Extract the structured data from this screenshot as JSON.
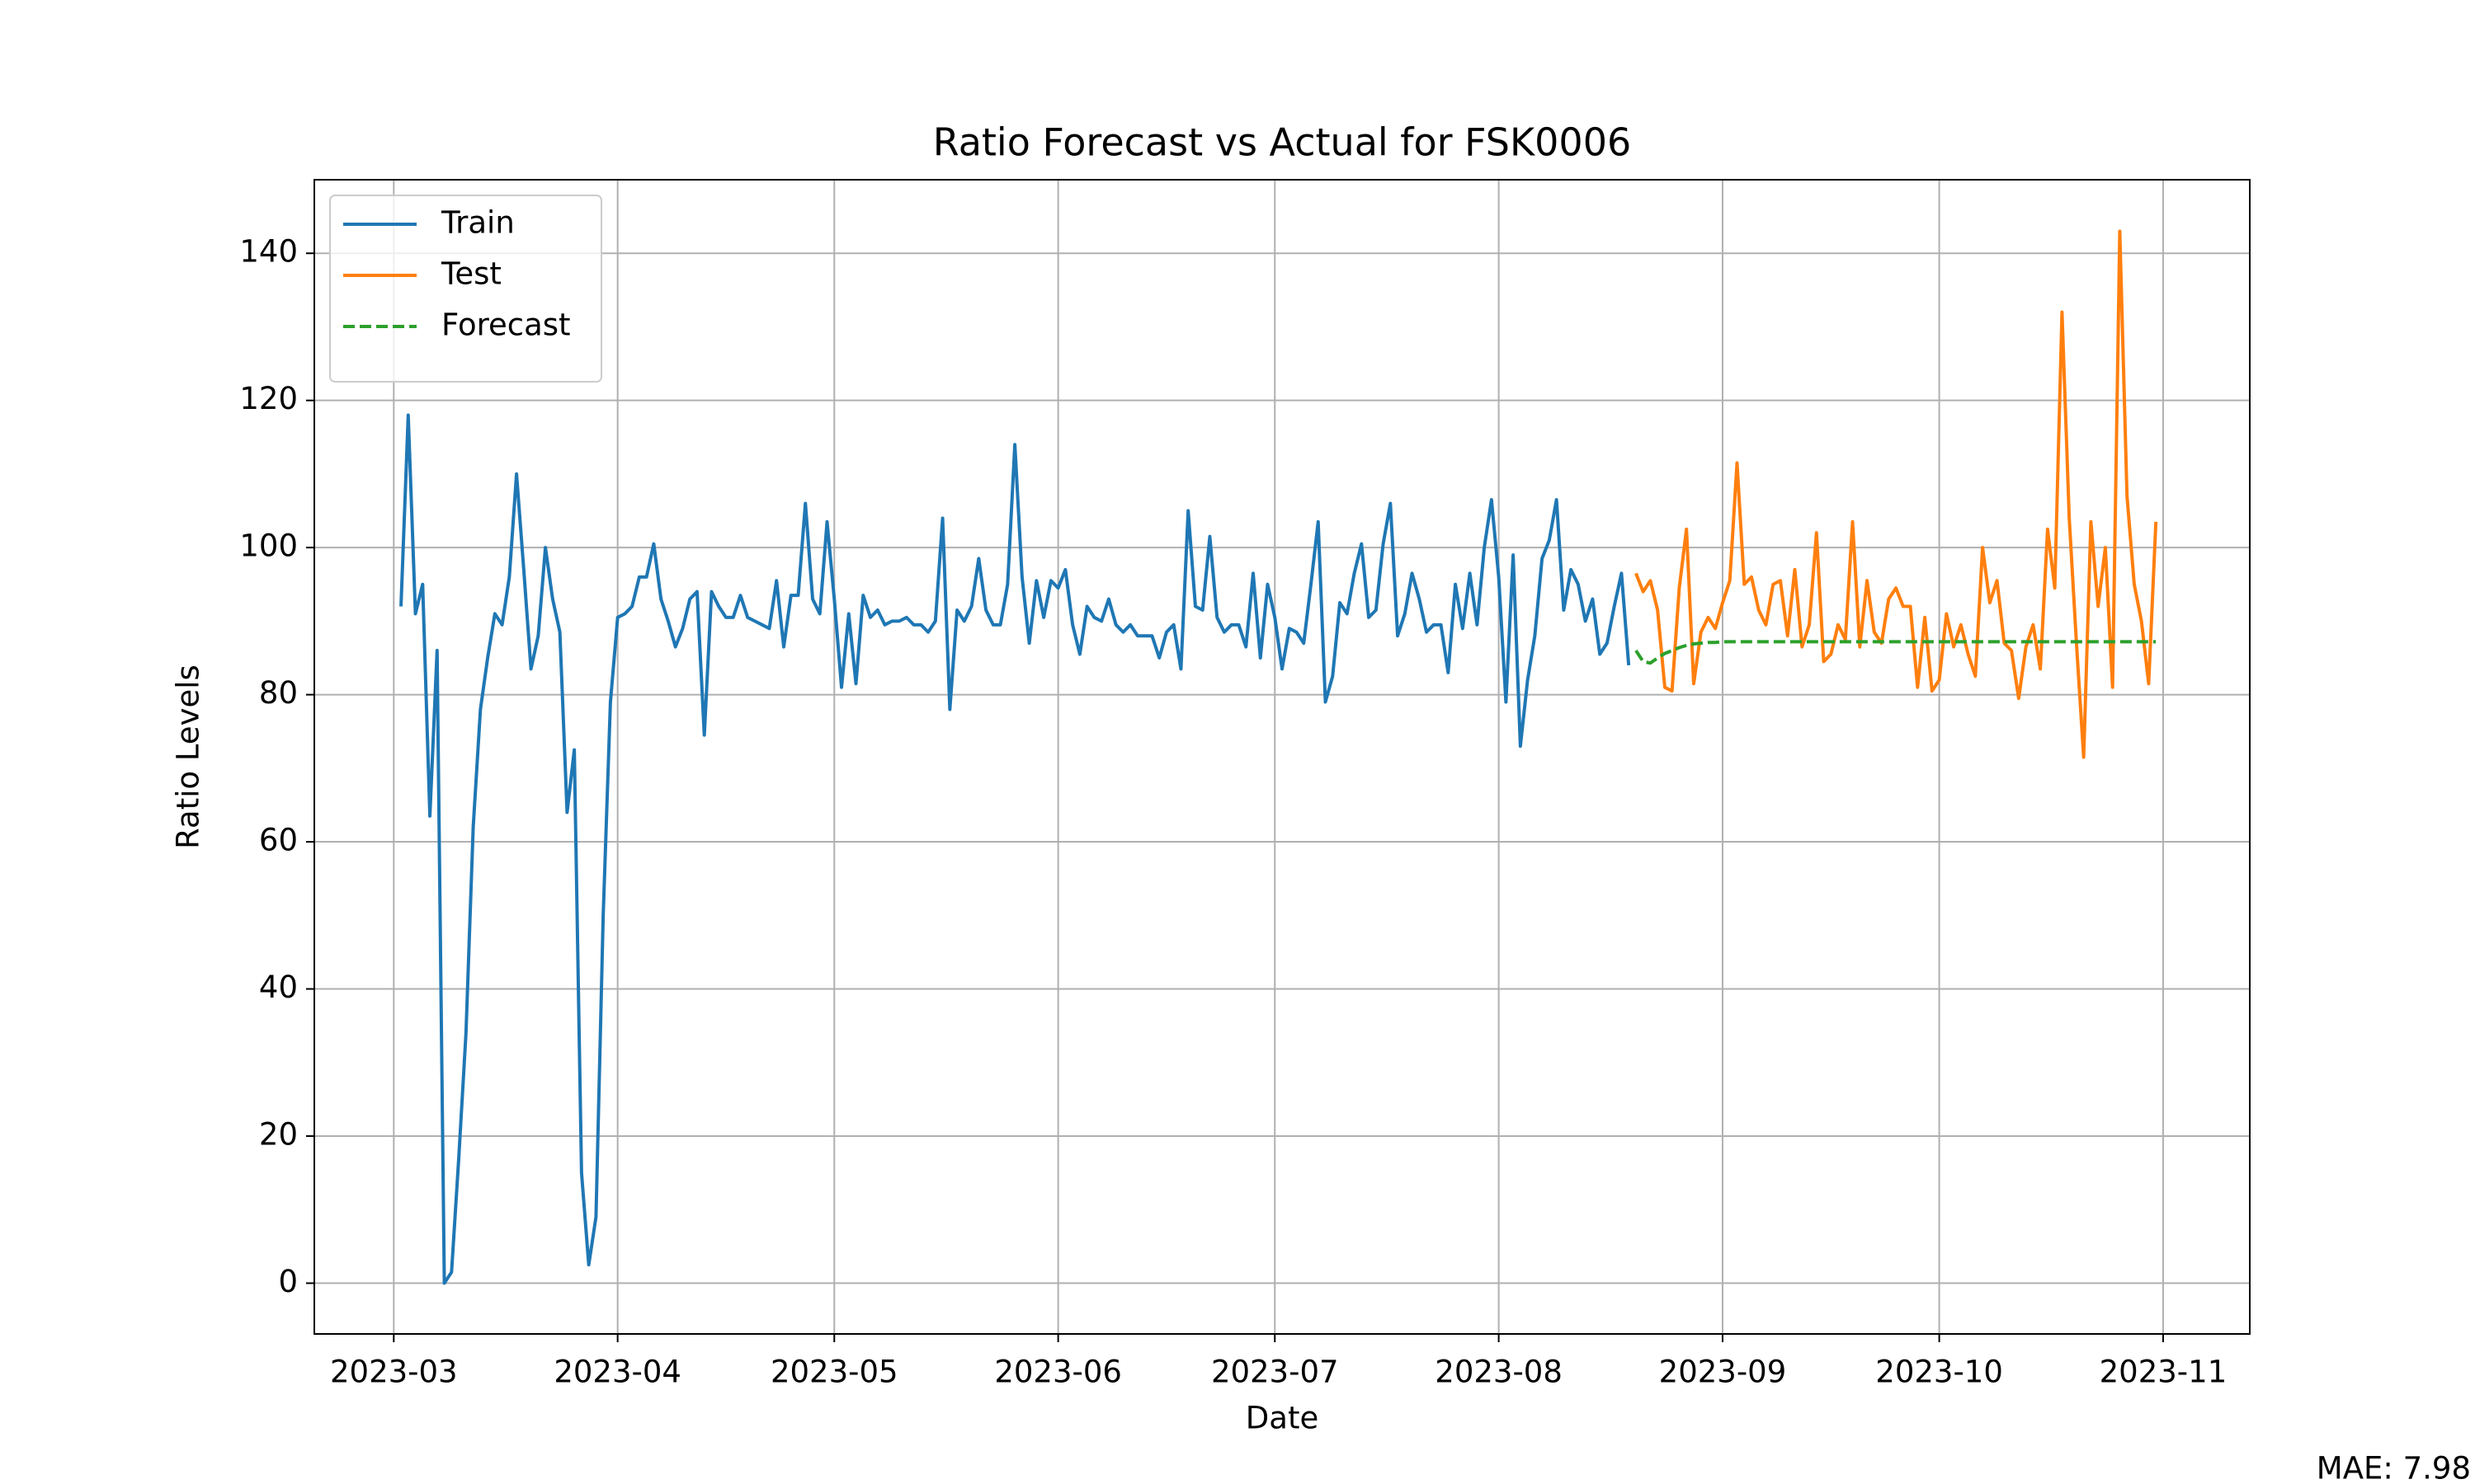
{
  "chart_data": {
    "type": "line",
    "title": "Ratio Forecast vs Actual for FSK0006",
    "x_label": "Date",
    "y_label": "Ratio Levels",
    "annotation": "MAE: 7.98",
    "xlim": [
      "2023-02-18",
      "2023-11-13"
    ],
    "xticks": [
      "2023-03",
      "2023-04",
      "2023-05",
      "2023-06",
      "2023-07",
      "2023-08",
      "2023-09",
      "2023-10",
      "2023-11"
    ],
    "ylim": [
      -6.9,
      150
    ],
    "yticks": [
      0,
      20,
      40,
      60,
      80,
      100,
      120,
      140
    ],
    "grid": true,
    "legend_position": "upper left",
    "series": [
      {
        "name": "Train",
        "color": "#1f77b4",
        "dashed": false,
        "x": [
          "2023-03-02",
          "2023-03-03",
          "2023-03-04",
          "2023-03-05",
          "2023-03-06",
          "2023-03-07",
          "2023-03-08",
          "2023-03-09",
          "2023-03-10",
          "2023-03-11",
          "2023-03-12",
          "2023-03-13",
          "2023-03-14",
          "2023-03-15",
          "2023-03-16",
          "2023-03-17",
          "2023-03-18",
          "2023-03-19",
          "2023-03-20",
          "2023-03-21",
          "2023-03-22",
          "2023-03-23",
          "2023-03-24",
          "2023-03-25",
          "2023-03-26",
          "2023-03-27",
          "2023-03-28",
          "2023-03-29",
          "2023-03-30",
          "2023-03-31",
          "2023-04-01",
          "2023-04-02",
          "2023-04-03",
          "2023-04-04",
          "2023-04-05",
          "2023-04-06",
          "2023-04-07",
          "2023-04-08",
          "2023-04-09",
          "2023-04-10",
          "2023-04-11",
          "2023-04-12",
          "2023-04-13",
          "2023-04-14",
          "2023-04-15",
          "2023-04-16",
          "2023-04-17",
          "2023-04-18",
          "2023-04-19",
          "2023-04-20",
          "2023-04-21",
          "2023-04-22",
          "2023-04-23",
          "2023-04-24",
          "2023-04-25",
          "2023-04-26",
          "2023-04-27",
          "2023-04-28",
          "2023-04-29",
          "2023-04-30",
          "2023-05-01",
          "2023-05-02",
          "2023-05-03",
          "2023-05-04",
          "2023-05-05",
          "2023-05-06",
          "2023-05-07",
          "2023-05-08",
          "2023-05-09",
          "2023-05-10",
          "2023-05-11",
          "2023-05-12",
          "2023-05-13",
          "2023-05-14",
          "2023-05-15",
          "2023-05-16",
          "2023-05-17",
          "2023-05-18",
          "2023-05-19",
          "2023-05-20",
          "2023-05-21",
          "2023-05-22",
          "2023-05-23",
          "2023-05-24",
          "2023-05-25",
          "2023-05-26",
          "2023-05-27",
          "2023-05-28",
          "2023-05-29",
          "2023-05-30",
          "2023-05-31",
          "2023-06-01",
          "2023-06-02",
          "2023-06-03",
          "2023-06-04",
          "2023-06-05",
          "2023-06-06",
          "2023-06-07",
          "2023-06-08",
          "2023-06-09",
          "2023-06-10",
          "2023-06-11",
          "2023-06-12",
          "2023-06-13",
          "2023-06-14",
          "2023-06-15",
          "2023-06-16",
          "2023-06-17",
          "2023-06-18",
          "2023-06-19",
          "2023-06-20",
          "2023-06-21",
          "2023-06-22",
          "2023-06-23",
          "2023-06-24",
          "2023-06-25",
          "2023-06-26",
          "2023-06-27",
          "2023-06-28",
          "2023-06-29",
          "2023-06-30",
          "2023-07-01",
          "2023-07-02",
          "2023-07-03",
          "2023-07-04",
          "2023-07-05",
          "2023-07-06",
          "2023-07-07",
          "2023-07-08",
          "2023-07-09",
          "2023-07-10",
          "2023-07-11",
          "2023-07-12",
          "2023-07-13",
          "2023-07-14",
          "2023-07-15",
          "2023-07-16",
          "2023-07-17",
          "2023-07-18",
          "2023-07-19",
          "2023-07-20",
          "2023-07-21",
          "2023-07-22",
          "2023-07-23",
          "2023-07-24",
          "2023-07-25",
          "2023-07-26",
          "2023-07-27",
          "2023-07-28",
          "2023-07-29",
          "2023-07-30",
          "2023-07-31",
          "2023-08-01",
          "2023-08-02",
          "2023-08-03",
          "2023-08-04",
          "2023-08-05",
          "2023-08-06",
          "2023-08-07",
          "2023-08-08",
          "2023-08-09",
          "2023-08-10",
          "2023-08-11",
          "2023-08-12",
          "2023-08-13",
          "2023-08-14",
          "2023-08-15",
          "2023-08-16",
          "2023-08-17",
          "2023-08-18",
          "2023-08-19"
        ],
        "values": [
          92,
          118,
          91,
          95,
          63.5,
          86,
          0,
          1.5,
          17,
          34,
          62,
          78,
          85,
          91,
          89.5,
          96,
          110,
          97,
          83.5,
          88,
          100,
          93,
          88.5,
          64,
          72.5,
          15,
          2.5,
          9,
          50,
          79,
          90.5,
          91,
          92,
          96,
          96,
          100.5,
          93,
          90,
          86.5,
          89,
          93,
          94,
          74.5,
          94,
          92,
          90.5,
          90.5,
          93.5,
          90.5,
          90,
          89.5,
          89,
          95.5,
          86.5,
          93.5,
          93.5,
          106,
          93,
          91,
          103.5,
          93,
          81,
          91,
          81.5,
          93.5,
          90.5,
          91.5,
          89.5,
          90,
          90,
          90.5,
          89.5,
          89.5,
          88.5,
          90,
          104,
          78,
          91.5,
          90,
          92,
          98.5,
          91.5,
          89.5,
          89.5,
          95,
          114,
          96,
          87,
          95.5,
          90.5,
          95.5,
          94.5,
          97,
          89.5,
          85.5,
          92,
          90.5,
          90,
          93,
          89.5,
          88.5,
          89.5,
          88,
          88,
          88,
          85,
          88.5,
          89.5,
          83.5,
          105,
          92,
          91.5,
          101.5,
          90.5,
          88.5,
          89.5,
          89.5,
          86.5,
          96.5,
          85,
          95,
          90.5,
          83.5,
          89,
          88.5,
          87,
          95,
          103.5,
          79,
          82.5,
          92.5,
          91,
          96.5,
          100.5,
          90.5,
          91.5,
          100.5,
          106,
          88,
          91,
          96.5,
          93,
          88.5,
          89.5,
          89.5,
          83,
          95,
          89,
          96.5,
          89.5,
          100,
          106.5,
          96,
          79,
          99,
          73,
          82,
          88,
          98.5,
          101,
          106.5,
          91.5,
          97,
          95,
          90,
          93,
          85.5,
          87,
          92,
          96.5,
          84
        ]
      },
      {
        "name": "Test",
        "color": "#ff7f0e",
        "dashed": false,
        "x": [
          "2023-08-20",
          "2023-08-21",
          "2023-08-22",
          "2023-08-23",
          "2023-08-24",
          "2023-08-25",
          "2023-08-26",
          "2023-08-27",
          "2023-08-28",
          "2023-08-29",
          "2023-08-30",
          "2023-08-31",
          "2023-09-01",
          "2023-09-02",
          "2023-09-03",
          "2023-09-04",
          "2023-09-05",
          "2023-09-06",
          "2023-09-07",
          "2023-09-08",
          "2023-09-09",
          "2023-09-10",
          "2023-09-11",
          "2023-09-12",
          "2023-09-13",
          "2023-09-14",
          "2023-09-15",
          "2023-09-16",
          "2023-09-17",
          "2023-09-18",
          "2023-09-19",
          "2023-09-20",
          "2023-09-21",
          "2023-09-22",
          "2023-09-23",
          "2023-09-24",
          "2023-09-25",
          "2023-09-26",
          "2023-09-27",
          "2023-09-28",
          "2023-09-29",
          "2023-09-30",
          "2023-10-01",
          "2023-10-02",
          "2023-10-03",
          "2023-10-04",
          "2023-10-05",
          "2023-10-06",
          "2023-10-07",
          "2023-10-08",
          "2023-10-09",
          "2023-10-10",
          "2023-10-11",
          "2023-10-12",
          "2023-10-13",
          "2023-10-14",
          "2023-10-15",
          "2023-10-16",
          "2023-10-17",
          "2023-10-18",
          "2023-10-19",
          "2023-10-20",
          "2023-10-21",
          "2023-10-22",
          "2023-10-23",
          "2023-10-24",
          "2023-10-25",
          "2023-10-26",
          "2023-10-27",
          "2023-10-28",
          "2023-10-29",
          "2023-10-30",
          "2023-10-31"
        ],
        "values": [
          96.5,
          94,
          95.5,
          91.5,
          81,
          80.5,
          94.5,
          102.5,
          81.5,
          88.5,
          90.5,
          89,
          92.5,
          95.5,
          111.5,
          95,
          96,
          91.5,
          89.5,
          95,
          95.5,
          88,
          97,
          86.5,
          89.5,
          102,
          84.5,
          85.5,
          89.5,
          87.5,
          103.5,
          86.5,
          95.5,
          88.5,
          87,
          93,
          94.5,
          92,
          92,
          81,
          90.5,
          80.5,
          82,
          91,
          86.5,
          89.5,
          85.5,
          82.5,
          100,
          92.5,
          95.5,
          87,
          86,
          79.5,
          86.5,
          89.5,
          83.5,
          102.5,
          94.5,
          132,
          104,
          87,
          71.5,
          103.5,
          92,
          100,
          81,
          143,
          107,
          95,
          90,
          81.5,
          103.5
        ]
      },
      {
        "name": "Forecast",
        "color": "#2ca02c",
        "dashed": true,
        "x": [
          "2023-08-20",
          "2023-08-21",
          "2023-08-22",
          "2023-08-23",
          "2023-08-24",
          "2023-08-25",
          "2023-08-26",
          "2023-08-27",
          "2023-08-28",
          "2023-08-29",
          "2023-08-30",
          "2023-08-31",
          "2023-09-01",
          "2023-09-02",
          "2023-09-03",
          "2023-09-04",
          "2023-09-05",
          "2023-09-06",
          "2023-09-07",
          "2023-09-08",
          "2023-09-09",
          "2023-09-10",
          "2023-09-11",
          "2023-09-12",
          "2023-09-13",
          "2023-09-14",
          "2023-09-15",
          "2023-09-16",
          "2023-09-17",
          "2023-09-18",
          "2023-09-19",
          "2023-09-20",
          "2023-09-21",
          "2023-09-22",
          "2023-09-23",
          "2023-09-24",
          "2023-09-25",
          "2023-09-26",
          "2023-09-27",
          "2023-09-28",
          "2023-09-29",
          "2023-09-30",
          "2023-10-01",
          "2023-10-02",
          "2023-10-03",
          "2023-10-04",
          "2023-10-05",
          "2023-10-06",
          "2023-10-07",
          "2023-10-08",
          "2023-10-09",
          "2023-10-10",
          "2023-10-11",
          "2023-10-12",
          "2023-10-13",
          "2023-10-14",
          "2023-10-15",
          "2023-10-16",
          "2023-10-17",
          "2023-10-18",
          "2023-10-19",
          "2023-10-20",
          "2023-10-21",
          "2023-10-22",
          "2023-10-23",
          "2023-10-24",
          "2023-10-25",
          "2023-10-26",
          "2023-10-27",
          "2023-10-28",
          "2023-10-29",
          "2023-10-30",
          "2023-10-31"
        ],
        "values": [
          86,
          84.5,
          84.3,
          85,
          85.6,
          86,
          86.4,
          86.7,
          86.9,
          87,
          87.1,
          87.1,
          87.2,
          87.2,
          87.2,
          87.2,
          87.2,
          87.2,
          87.2,
          87.2,
          87.2,
          87.2,
          87.2,
          87.2,
          87.2,
          87.2,
          87.2,
          87.2,
          87.2,
          87.2,
          87.2,
          87.2,
          87.2,
          87.2,
          87.2,
          87.2,
          87.2,
          87.2,
          87.2,
          87.2,
          87.2,
          87.2,
          87.2,
          87.2,
          87.2,
          87.2,
          87.2,
          87.2,
          87.2,
          87.2,
          87.2,
          87.2,
          87.2,
          87.2,
          87.2,
          87.2,
          87.2,
          87.2,
          87.2,
          87.2,
          87.2,
          87.2,
          87.2,
          87.2,
          87.2,
          87.2,
          87.2,
          87.2,
          87.2,
          87.2,
          87.2,
          87.2,
          87.2
        ]
      }
    ]
  }
}
